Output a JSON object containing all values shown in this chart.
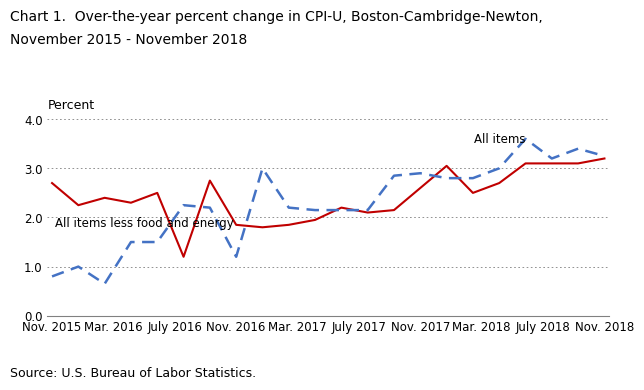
{
  "title_line1": "Chart 1.  Over-the-year percent change in CPI-U, Boston-Cambridge-Newton,",
  "title_line2": "November 2015 - November 2018",
  "ylabel_text": "Percent",
  "source": "Source: U.S. Bureau of Labor Statistics.",
  "xlabels": [
    "Nov. 2015",
    "Mar. 2016",
    "July 2016",
    "Nov. 2016",
    "Mar. 2017",
    "July 2017",
    "Nov. 2017",
    "Mar. 2018",
    "July 2018",
    "Nov. 2018"
  ],
  "ylim": [
    0.0,
    4.0
  ],
  "yticks": [
    0.0,
    1.0,
    2.0,
    3.0,
    4.0
  ],
  "all_items": [
    2.7,
    2.25,
    2.4,
    2.3,
    2.5,
    1.2,
    2.75,
    1.85,
    1.8,
    1.85,
    1.95,
    2.2,
    2.1,
    2.15,
    2.6,
    3.05,
    2.5,
    2.7,
    3.1,
    3.1,
    3.1,
    3.2
  ],
  "all_items_less": [
    0.8,
    1.0,
    0.65,
    1.5,
    1.5,
    2.25,
    2.2,
    1.2,
    3.0,
    2.2,
    2.15,
    2.15,
    2.15,
    2.85,
    2.9,
    2.8,
    2.8,
    3.0,
    3.6,
    3.2,
    3.4,
    3.25
  ],
  "all_items_color": "#c00000",
  "all_items_less_color": "#4472c4",
  "annotation_all_items": "All items",
  "annotation_less": "All items less food and energy",
  "background_color": "#ffffff",
  "grid_color": "#808080",
  "title_fontsize": 10,
  "label_fontsize": 9,
  "tick_fontsize": 8.5,
  "annot_fontsize": 8.5
}
